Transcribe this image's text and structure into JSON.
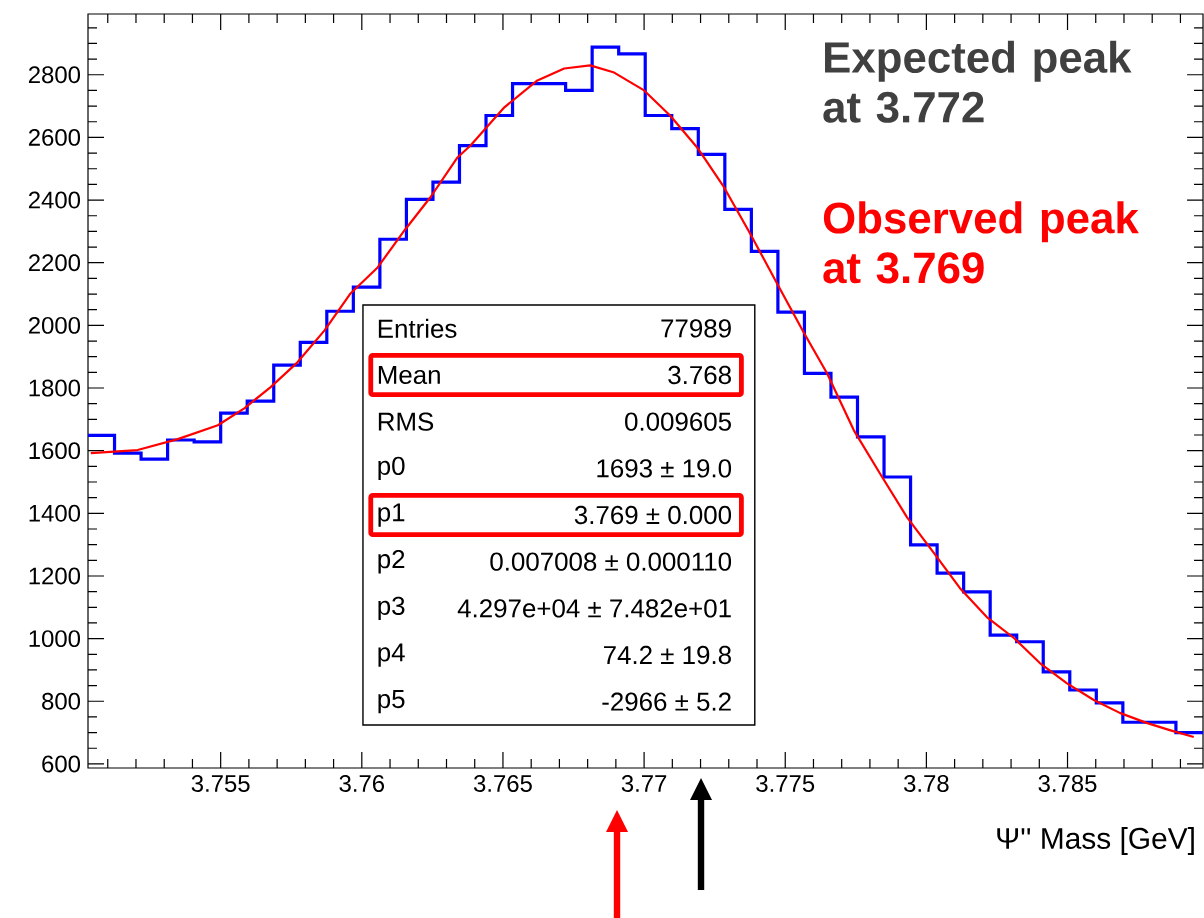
{
  "chart_data": {
    "type": "step",
    "xlabel": "Ψ'' Mass [GeV]",
    "series": [
      {
        "color": "#0000ff",
        "x": [
          3.7503,
          3.75124,
          3.75218,
          3.75312,
          3.75406,
          3.755,
          3.75594,
          3.75688,
          3.75782,
          3.75876,
          3.7597,
          3.76064,
          3.76158,
          3.76252,
          3.76346,
          3.7644,
          3.76534,
          3.76628,
          3.76722,
          3.76816,
          3.7691,
          3.77004,
          3.77098,
          3.77192,
          3.77286,
          3.7738,
          3.77474,
          3.77568,
          3.77662,
          3.77756,
          3.7785,
          3.77944,
          3.78038,
          3.78132,
          3.78226,
          3.7832,
          3.78414,
          3.78508,
          3.78602,
          3.78696,
          3.7879,
          3.78884,
          3.7898
        ],
        "values": [
          1649,
          1592,
          1573,
          1634,
          1628,
          1720,
          1758,
          1873,
          1946,
          2045,
          2122,
          2275,
          2402,
          2457,
          2574,
          2670,
          2772,
          2772,
          2750,
          2888,
          2867,
          2670,
          2628,
          2546,
          2370,
          2236,
          2042,
          1847,
          1771,
          1644,
          1516,
          1299,
          1209,
          1149,
          1011,
          990,
          894,
          836,
          795,
          733,
          733,
          700,
          700
        ]
      },
      {
        "type": "line",
        "color": "#ff0000",
        "x": [
          3.7504,
          3.75206,
          3.75348,
          3.7549,
          3.75585,
          3.75677,
          3.75772,
          3.75868,
          3.7596,
          3.76056,
          3.76151,
          3.76243,
          3.76339,
          3.76385,
          3.76505,
          3.76622,
          3.76717,
          3.76809,
          3.76894,
          3.77,
          3.77092,
          3.77188,
          3.77283,
          3.77375,
          3.77471,
          3.77567,
          3.77648,
          3.77743,
          3.77835,
          3.77931,
          3.78027,
          3.78119,
          3.78214,
          3.7831,
          3.78402,
          3.78497,
          3.78593,
          3.78685,
          3.7878,
          3.78862,
          3.78947
        ],
        "values": [
          1592,
          1602,
          1637,
          1681,
          1736,
          1803,
          1882,
          1984,
          2102,
          2185,
          2303,
          2409,
          2536,
          2574,
          2696,
          2782,
          2820,
          2830,
          2807,
          2750,
          2670,
          2568,
          2441,
          2294,
          2134,
          1975,
          1847,
          1665,
          1528,
          1388,
          1273,
          1161,
          1069,
          1002,
          922,
          858,
          804,
          763,
          731,
          708,
          686
        ]
      }
    ],
    "xlim": [
      3.7503,
      3.7898
    ],
    "ylim": [
      587,
      2994
    ],
    "xticks": [
      {
        "value": 3.751,
        "label": null
      },
      {
        "value": 3.752,
        "label": null
      },
      {
        "value": 3.753,
        "label": null
      },
      {
        "value": 3.754,
        "label": null
      },
      3.755,
      {
        "value": 3.756,
        "label": null
      },
      {
        "value": 3.757,
        "label": null
      },
      {
        "value": 3.758,
        "label": null
      },
      {
        "value": 3.759,
        "label": null
      },
      3.76,
      {
        "value": 3.761,
        "label": null
      },
      {
        "value": 3.762,
        "label": null
      },
      {
        "value": 3.763,
        "label": null
      },
      {
        "value": 3.764,
        "label": null
      },
      3.765,
      {
        "value": 3.766,
        "label": null
      },
      {
        "value": 3.767,
        "label": null
      },
      {
        "value": 3.768,
        "label": null
      },
      {
        "value": 3.769,
        "label": null
      },
      3.77,
      {
        "value": 3.771,
        "label": null
      },
      {
        "value": 3.772,
        "label": null
      },
      {
        "value": 3.773,
        "label": null
      },
      {
        "value": 3.774,
        "label": null
      },
      3.775,
      {
        "value": 3.776,
        "label": null
      },
      {
        "value": 3.777,
        "label": null
      },
      {
        "value": 3.778,
        "label": null
      },
      {
        "value": 3.779,
        "label": null
      },
      3.78,
      {
        "value": 3.781,
        "label": null
      },
      {
        "value": 3.782,
        "label": null
      },
      {
        "value": 3.783,
        "label": null
      },
      {
        "value": 3.784,
        "label": null
      },
      3.785,
      {
        "value": 3.786,
        "label": null
      },
      {
        "value": 3.787,
        "label": null
      },
      {
        "value": 3.788,
        "label": null
      },
      {
        "value": 3.789,
        "label": null
      }
    ],
    "yticks": [
      600,
      {
        "value": 650,
        "label": null
      },
      {
        "value": 700,
        "label": null
      },
      {
        "value": 750,
        "label": null
      },
      800,
      {
        "value": 850,
        "label": null
      },
      {
        "value": 900,
        "label": null
      },
      {
        "value": 950,
        "label": null
      },
      1000,
      {
        "value": 1050,
        "label": null
      },
      {
        "value": 1100,
        "label": null
      },
      {
        "value": 1150,
        "label": null
      },
      1200,
      {
        "value": 1250,
        "label": null
      },
      {
        "value": 1300,
        "label": null
      },
      {
        "value": 1350,
        "label": null
      },
      1400,
      {
        "value": 1450,
        "label": null
      },
      {
        "value": 1500,
        "label": null
      },
      {
        "value": 1550,
        "label": null
      },
      1600,
      {
        "value": 1650,
        "label": null
      },
      {
        "value": 1700,
        "label": null
      },
      {
        "value": 1750,
        "label": null
      },
      1800,
      {
        "value": 1850,
        "label": null
      },
      {
        "value": 1900,
        "label": null
      },
      {
        "value": 1950,
        "label": null
      },
      2000,
      {
        "value": 2050,
        "label": null
      },
      {
        "value": 2100,
        "label": null
      },
      {
        "value": 2150,
        "label": null
      },
      2200,
      {
        "value": 2250,
        "label": null
      },
      {
        "value": 2300,
        "label": null
      },
      {
        "value": 2350,
        "label": null
      },
      2400,
      {
        "value": 2450,
        "label": null
      },
      {
        "value": 2500,
        "label": null
      },
      {
        "value": 2550,
        "label": null
      },
      2600,
      {
        "value": 2650,
        "label": null
      },
      {
        "value": 2700,
        "label": null
      },
      {
        "value": 2750,
        "label": null
      },
      2800,
      {
        "value": 2850,
        "label": null
      },
      {
        "value": 2900,
        "label": null
      },
      {
        "value": 2950,
        "label": null
      }
    ],
    "annotations": [
      "Expected peak at 3.772",
      "Observed peak at 3.769",
      "Entries",
      "77989",
      "Mean",
      "3.768",
      "RMS",
      "0.009605",
      "p0",
      "1693 ± 19.0",
      "p1",
      "3.769 ± 0.000",
      "p2",
      "0.007008 ± 0.000110",
      "p3",
      "4.297e+04 ± 7.482e+01",
      "p4",
      "74.2 ± 19.8",
      "p5",
      "-2966 ± 5.2"
    ]
  }
}
